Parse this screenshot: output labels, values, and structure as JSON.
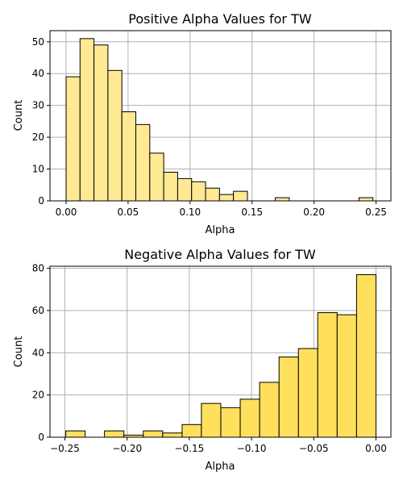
{
  "chart_data": [
    {
      "type": "bar",
      "title": "Positive Alpha Values for TW",
      "xlabel": "Alpha",
      "ylabel": "Count",
      "bar_color": "#ffe993",
      "xlim": [
        -0.013,
        0.262
      ],
      "ylim": [
        0,
        53.5
      ],
      "xticks": [
        0.0,
        0.05,
        0.1,
        0.15,
        0.2,
        0.25
      ],
      "xtick_labels": [
        "0.00",
        "0.05",
        "0.10",
        "0.15",
        "0.20",
        "0.25"
      ],
      "yticks": [
        0,
        10,
        20,
        30,
        40,
        50
      ],
      "ytick_labels": [
        "0",
        "10",
        "20",
        "30",
        "40",
        "50"
      ],
      "grid": true,
      "bin_edges": [
        0.0,
        0.01125,
        0.0225,
        0.03375,
        0.045,
        0.05625,
        0.0675,
        0.07875,
        0.09,
        0.10125,
        0.1125,
        0.12375,
        0.135,
        0.14625,
        0.1575,
        0.16875,
        0.18,
        0.19125,
        0.2025,
        0.21375,
        0.225,
        0.23625,
        0.2475
      ],
      "values": [
        39,
        51,
        49,
        41,
        28,
        24,
        15,
        9,
        7,
        6,
        4,
        2,
        3,
        0,
        0,
        1,
        0,
        0,
        0,
        0,
        0,
        1
      ]
    },
    {
      "type": "bar",
      "title": "Negative Alpha Values for TW",
      "xlabel": "Alpha",
      "ylabel": "Count",
      "bar_color": "#ffe05c",
      "xlim": [
        -0.262,
        0.012
      ],
      "ylim": [
        0,
        81
      ],
      "xticks": [
        -0.25,
        -0.2,
        -0.15,
        -0.1,
        -0.05,
        0.0
      ],
      "xtick_labels": [
        "−0.25",
        "−0.20",
        "−0.15",
        "−0.10",
        "−0.05",
        "0.00"
      ],
      "yticks": [
        0,
        20,
        40,
        60,
        80
      ],
      "ytick_labels": [
        "0",
        "20",
        "40",
        "60",
        "80"
      ],
      "grid": true,
      "bin_edges": [
        -0.2493,
        -0.2337,
        -0.2182,
        -0.2026,
        -0.187,
        -0.1714,
        -0.1558,
        -0.1403,
        -0.1247,
        -0.1091,
        -0.0935,
        -0.0779,
        -0.0623,
        -0.0468,
        -0.0312,
        -0.0156,
        0.0
      ],
      "values": [
        3,
        0,
        3,
        1,
        3,
        2,
        6,
        16,
        14,
        18,
        26,
        38,
        42,
        59,
        58,
        77
      ]
    }
  ]
}
